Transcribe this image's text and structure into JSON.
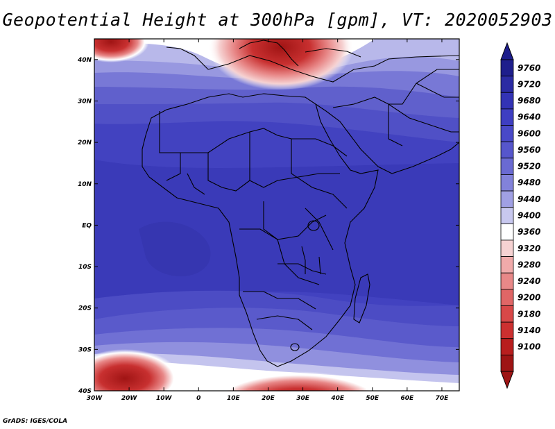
{
  "title": "Geopotential Height at 300hPa [gpm], VT: 2020052903",
  "credit": "GrADS: IGES/COLA",
  "map": {
    "projection": "lat-lon",
    "lon_range": [
      -30,
      75
    ],
    "lat_range": [
      -40,
      45
    ],
    "lon_ticks": [
      {
        "value": -30,
        "label": "30W"
      },
      {
        "value": -20,
        "label": "20W"
      },
      {
        "value": -10,
        "label": "10W"
      },
      {
        "value": 0,
        "label": "0"
      },
      {
        "value": 10,
        "label": "10E"
      },
      {
        "value": 20,
        "label": "20E"
      },
      {
        "value": 30,
        "label": "30E"
      },
      {
        "value": 40,
        "label": "40E"
      },
      {
        "value": 50,
        "label": "50E"
      },
      {
        "value": 60,
        "label": "60E"
      },
      {
        "value": 70,
        "label": "70E"
      }
    ],
    "lat_ticks": [
      {
        "value": 40,
        "label": "40N"
      },
      {
        "value": 30,
        "label": "30N"
      },
      {
        "value": 20,
        "label": "20N"
      },
      {
        "value": 10,
        "label": "10N"
      },
      {
        "value": 0,
        "label": "EQ"
      },
      {
        "value": -10,
        "label": "10S"
      },
      {
        "value": -20,
        "label": "20S"
      },
      {
        "value": -30,
        "label": "30S"
      },
      {
        "value": -40,
        "label": "40S"
      }
    ]
  },
  "colorbar": {
    "labels": [
      "9760",
      "9720",
      "9680",
      "9640",
      "9600",
      "9560",
      "9520",
      "9480",
      "9440",
      "9400",
      "9360",
      "9320",
      "9280",
      "9240",
      "9200",
      "9180",
      "9140",
      "9100"
    ],
    "colors": [
      "#1e1e8c",
      "#2b2ba3",
      "#3333b5",
      "#3e3ec2",
      "#4949c8",
      "#5656cc",
      "#6a6ad2",
      "#8282da",
      "#a0a0e4",
      "#c8c8ef",
      "#ffffff",
      "#f6d2d2",
      "#f0aaaa",
      "#e88888",
      "#e06666",
      "#d84848",
      "#cc3030",
      "#b81e1e",
      "#9e1414"
    ]
  }
}
